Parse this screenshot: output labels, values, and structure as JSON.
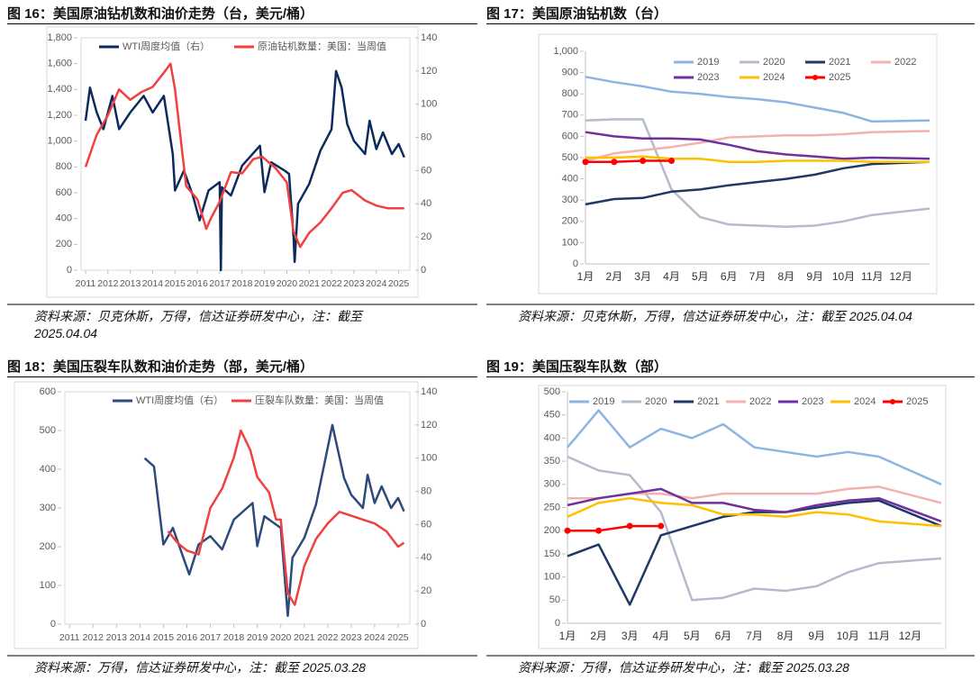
{
  "chart_data": [
    {
      "type": "dual-line",
      "title": "图 16：美国原油钻机数和油价走势（台，美元/桶）",
      "source": "资料来源：贝克休斯，万得，信达证券研发中心，注：截至 2025.04.04",
      "xlim": [
        2010.8,
        2025.5
      ],
      "xticks": [
        2011,
        2012,
        2013,
        2014,
        2015,
        2016,
        2017,
        2018,
        2019,
        2020,
        2021,
        2022,
        2023,
        2024,
        2025
      ],
      "ylim": [
        0,
        1800
      ],
      "yticks": [
        0,
        200,
        400,
        600,
        800,
        {
          "value": 1000,
          "label": "1,000"
        },
        {
          "value": 1200,
          "label": "1,200"
        },
        {
          "value": 1400,
          "label": "1,400"
        },
        {
          "value": 1600,
          "label": "1,600"
        },
        {
          "value": 1800,
          "label": "1,800"
        }
      ],
      "y2lim": [
        0,
        140
      ],
      "y2ticks": [
        0,
        20,
        40,
        60,
        80,
        100,
        120,
        140
      ],
      "series": [
        {
          "name": "WTI周度均值（右）",
          "color": "#0d2a5e",
          "axis": "y2",
          "x": [
            2011.0,
            2011.2,
            2011.5,
            2011.8,
            2012.2,
            2012.5,
            2013.0,
            2013.6,
            2014.0,
            2014.5,
            2014.9,
            2015.0,
            2015.4,
            2015.8,
            2016.1,
            2016.5,
            2017.0,
            2017.05,
            2017.1,
            2017.5,
            2018.0,
            2018.8,
            2019.0,
            2019.3,
            2019.9,
            2020.1,
            2020.3,
            2020.35,
            2020.5,
            2021.0,
            2021.5,
            2022.0,
            2022.2,
            2022.45,
            2022.7,
            2023.0,
            2023.5,
            2023.7,
            2024.0,
            2024.3,
            2024.7,
            2025.0,
            2025.25
          ],
          "values": [
            90,
            110,
            95,
            85,
            105,
            85,
            95,
            105,
            95,
            105,
            70,
            48,
            60,
            45,
            30,
            48,
            53,
            0,
            50,
            45,
            63,
            75,
            47,
            65,
            60,
            58,
            20,
            5,
            40,
            52,
            72,
            85,
            120,
            110,
            88,
            78,
            70,
            90,
            73,
            83,
            70,
            76,
            68
          ]
        },
        {
          "name": "原油钻机数量：美国：当周值",
          "color": "#f04040",
          "axis": "y",
          "x": [
            2011.0,
            2011.5,
            2012.0,
            2012.5,
            2013.0,
            2013.5,
            2014.0,
            2014.5,
            2014.8,
            2015.0,
            2015.5,
            2016.0,
            2016.4,
            2016.6,
            2017.0,
            2017.5,
            2018.0,
            2018.5,
            2018.9,
            2019.5,
            2020.0,
            2020.3,
            2020.6,
            2021.0,
            2021.5,
            2022.0,
            2022.5,
            2022.9,
            2023.5,
            2024.0,
            2024.5,
            2025.25
          ],
          "values": [
            800,
            1050,
            1200,
            1400,
            1320,
            1380,
            1420,
            1530,
            1600,
            1400,
            650,
            550,
            320,
            400,
            530,
            760,
            750,
            860,
            880,
            790,
            680,
            300,
            180,
            290,
            370,
            480,
            600,
            620,
            540,
            500,
            480,
            480
          ]
        }
      ]
    },
    {
      "type": "month-line",
      "title": "图 17：美国原油钻机数（台）",
      "source": "资料来源：贝克休斯，万得，信达证券研发中心，注：截至 2025.04.04",
      "categories": [
        "1月",
        "2月",
        "3月",
        "4月",
        "5月",
        "6月",
        "7月",
        "8月",
        "9月",
        "10月",
        "11月",
        "12月"
      ],
      "ylim": [
        0,
        1000
      ],
      "yticks": [
        0,
        100,
        200,
        300,
        400,
        500,
        600,
        700,
        800,
        900,
        {
          "value": 1000,
          "label": "1,000"
        }
      ],
      "series": [
        {
          "name": "2019",
          "color": "#8db4e2",
          "values": [
            880,
            855,
            835,
            810,
            800,
            785,
            775,
            760,
            735,
            710,
            670,
            675
          ]
        },
        {
          "name": "2020",
          "color": "#b4bccb",
          "values": [
            675,
            680,
            680,
            350,
            220,
            185,
            180,
            175,
            180,
            200,
            230,
            260
          ]
        },
        {
          "name": "2021",
          "color": "#1f3864",
          "values": [
            280,
            305,
            310,
            340,
            350,
            370,
            385,
            400,
            420,
            450,
            470,
            480
          ]
        },
        {
          "name": "2022",
          "color": "#f4b1b1",
          "values": [
            485,
            520,
            535,
            550,
            570,
            595,
            600,
            605,
            605,
            610,
            620,
            625
          ]
        },
        {
          "name": "2023",
          "color": "#7030a0",
          "values": [
            620,
            600,
            590,
            590,
            585,
            560,
            530,
            515,
            505,
            495,
            500,
            495
          ]
        },
        {
          "name": "2024",
          "color": "#ffc000",
          "values": [
            500,
            500,
            505,
            495,
            495,
            480,
            480,
            485,
            485,
            485,
            480,
            480
          ]
        },
        {
          "name": "2025",
          "color": "#ff0000",
          "markers": true,
          "values": [
            480,
            480,
            485,
            485,
            null,
            null,
            null,
            null,
            null,
            null,
            null,
            null
          ]
        }
      ]
    },
    {
      "type": "dual-line",
      "title": "图 18：美国压裂车队数和油价走势（部，美元/桶）",
      "source": "资料来源：万得，信达证券研发中心，注：截至 2025.03.28",
      "xlim": [
        2010.8,
        2025.5
      ],
      "xticks": [
        2011,
        2012,
        2013,
        2014,
        2015,
        2016,
        2017,
        2018,
        2019,
        2020,
        2021,
        2022,
        2023,
        2024,
        2025
      ],
      "ylim": [
        0,
        600
      ],
      "yticks": [
        0,
        100,
        200,
        300,
        400,
        500,
        600
      ],
      "y2lim": [
        0,
        140
      ],
      "y2ticks": [
        0,
        20,
        40,
        60,
        80,
        100,
        120,
        140
      ],
      "series": [
        {
          "name": "WTI周度均值（右）",
          "color": "#2e4a7d",
          "axis": "y2",
          "x": [
            2014.2,
            2014.6,
            2015.0,
            2015.4,
            2016.1,
            2016.5,
            2017.0,
            2017.5,
            2018.0,
            2018.8,
            2019.0,
            2019.3,
            2020.0,
            2020.3,
            2020.5,
            2021.0,
            2021.5,
            2022.2,
            2022.7,
            2023.0,
            2023.5,
            2023.7,
            2024.0,
            2024.3,
            2024.7,
            2025.0,
            2025.25
          ],
          "values": [
            100,
            95,
            48,
            58,
            30,
            48,
            53,
            45,
            63,
            73,
            47,
            65,
            58,
            5,
            40,
            52,
            72,
            120,
            88,
            78,
            70,
            90,
            73,
            83,
            70,
            76,
            68
          ]
        },
        {
          "name": "压裂车队数量：美国：当周值",
          "color": "#f04040",
          "axis": "y",
          "x": [
            2015.2,
            2015.6,
            2016.0,
            2016.5,
            2017.0,
            2017.5,
            2018.0,
            2018.3,
            2018.7,
            2019.0,
            2019.5,
            2019.8,
            2020.0,
            2020.3,
            2020.6,
            2021.0,
            2021.5,
            2022.0,
            2022.5,
            2023.0,
            2023.5,
            2024.0,
            2024.5,
            2025.0,
            2025.25
          ],
          "values": [
            240,
            210,
            190,
            180,
            300,
            350,
            430,
            500,
            450,
            380,
            340,
            270,
            270,
            80,
            50,
            150,
            220,
            260,
            290,
            280,
            270,
            260,
            240,
            200,
            210
          ]
        }
      ]
    },
    {
      "type": "month-line",
      "title": "图 19：美国压裂车队数（部）",
      "source": "资料来源：万得，信达证券研发中心，注：截至 2025.03.28",
      "categories": [
        "1月",
        "2月",
        "3月",
        "4月",
        "5月",
        "6月",
        "7月",
        "8月",
        "9月",
        "10月",
        "11月",
        "12月"
      ],
      "ylim": [
        0,
        500
      ],
      "yticks": [
        0,
        50,
        100,
        150,
        200,
        250,
        300,
        350,
        400,
        450,
        500
      ],
      "series": [
        {
          "name": "2019",
          "color": "#8db4e2",
          "values": [
            380,
            460,
            380,
            420,
            400,
            430,
            380,
            370,
            360,
            370,
            360,
            300
          ]
        },
        {
          "name": "2020",
          "color": "#b4bccb",
          "values": [
            360,
            330,
            320,
            240,
            50,
            55,
            75,
            70,
            80,
            110,
            130,
            140
          ]
        },
        {
          "name": "2021",
          "color": "#1f3864",
          "values": [
            145,
            170,
            40,
            190,
            210,
            230,
            240,
            240,
            250,
            260,
            265,
            210
          ]
        },
        {
          "name": "2022",
          "color": "#f4b1b1",
          "values": [
            270,
            270,
            280,
            280,
            270,
            280,
            280,
            280,
            280,
            290,
            295,
            260
          ]
        },
        {
          "name": "2023",
          "color": "#7030a0",
          "values": [
            255,
            270,
            280,
            290,
            260,
            260,
            245,
            240,
            255,
            265,
            270,
            220
          ]
        },
        {
          "name": "2024",
          "color": "#ffc000",
          "values": [
            230,
            260,
            270,
            260,
            255,
            235,
            235,
            230,
            240,
            235,
            220,
            210
          ]
        },
        {
          "name": "2025",
          "color": "#ff0000",
          "markers": true,
          "values": [
            200,
            200,
            210,
            210,
            null,
            null,
            null,
            null,
            null,
            null,
            null,
            null
          ]
        }
      ]
    }
  ]
}
